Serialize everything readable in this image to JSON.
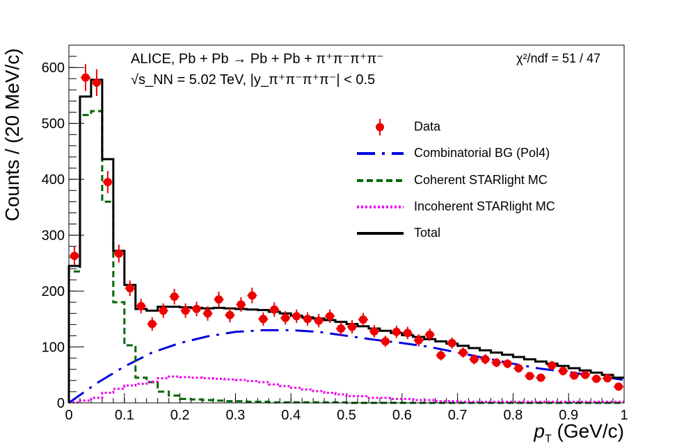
{
  "chart_data": {
    "type": "line",
    "xlabel": "p_T (GeV/c)",
    "xlabel_main": "p",
    "xlabel_sub": "T",
    "xlabel_unit": "(GeV/c)",
    "ylabel": "Counts / (20 MeV/c)",
    "xlim": [
      0,
      1
    ],
    "ylim": [
      0,
      640
    ],
    "x_ticks": [
      "0",
      "0.1",
      "0.2",
      "0.3",
      "0.4",
      "0.5",
      "0.6",
      "0.7",
      "0.8",
      "0.9",
      "1"
    ],
    "y_ticks": [
      "0",
      "100",
      "200",
      "300",
      "400",
      "500",
      "600"
    ],
    "annotations": {
      "line1": "ALICE, Pb + Pb → Pb + Pb + π⁺π⁻π⁺π⁻",
      "line2": "√s_NN = 5.02 TeV, |y_π⁺π⁻π⁺π⁻| < 0.5",
      "chi2": "χ²/ndf = 51 / 47"
    },
    "legend_position": "top-right",
    "series": [
      {
        "name": "Data",
        "kind": "points-with-errors",
        "color": "#ee0000",
        "x": [
          0.01,
          0.03,
          0.05,
          0.07,
          0.09,
          0.11,
          0.13,
          0.15,
          0.17,
          0.19,
          0.21,
          0.23,
          0.25,
          0.27,
          0.29,
          0.31,
          0.33,
          0.35,
          0.37,
          0.39,
          0.41,
          0.43,
          0.45,
          0.47,
          0.49,
          0.51,
          0.53,
          0.55,
          0.57,
          0.59,
          0.61,
          0.63,
          0.65,
          0.67,
          0.69,
          0.71,
          0.73,
          0.75,
          0.77,
          0.79,
          0.81,
          0.83,
          0.85,
          0.87,
          0.89,
          0.91,
          0.93,
          0.95,
          0.97,
          0.99
        ],
        "y": [
          263,
          582,
          573,
          395,
          267,
          205,
          173,
          141,
          165,
          190,
          165,
          168,
          160,
          185,
          157,
          176,
          192,
          150,
          167,
          152,
          155,
          150,
          147,
          155,
          133,
          136,
          149,
          128,
          110,
          127,
          125,
          112,
          122,
          85,
          107,
          90,
          78,
          78,
          72,
          70,
          62,
          48,
          45,
          67,
          57,
          49,
          50,
          43,
          44,
          29
        ],
        "err": [
          17,
          24,
          24,
          20,
          16,
          14,
          13,
          12,
          13,
          14,
          13,
          13,
          13,
          14,
          13,
          13,
          14,
          12,
          13,
          12,
          12,
          12,
          12,
          12,
          12,
          12,
          12,
          11,
          10,
          11,
          11,
          11,
          11,
          9,
          10,
          9,
          9,
          9,
          8,
          8,
          8,
          7,
          7,
          8,
          8,
          7,
          7,
          7,
          7,
          5
        ]
      },
      {
        "name": "Combinatorial BG (Pol4)",
        "kind": "curve",
        "color": "#0000dd",
        "dash": "long-dash-dot",
        "x": [
          0,
          0.05,
          0.1,
          0.15,
          0.2,
          0.25,
          0.3,
          0.35,
          0.4,
          0.45,
          0.5,
          0.55,
          0.6,
          0.65,
          0.7,
          0.75,
          0.8,
          0.85,
          0.9,
          0.95,
          1.0
        ],
        "y": [
          0,
          35,
          65,
          90,
          107,
          119,
          127,
          130,
          130,
          127,
          120,
          113,
          107,
          100,
          90,
          80,
          70,
          61,
          55,
          48,
          41
        ]
      },
      {
        "name": "Coherent STARlight MC",
        "kind": "histogram",
        "color": "#006600",
        "dash": "short-dash",
        "edges": [
          0,
          0.02,
          0.04,
          0.06,
          0.08,
          0.1,
          0.12,
          0.14,
          0.16,
          0.18,
          0.2,
          0.22,
          0.24,
          0.26,
          0.28,
          0.3,
          0.32,
          0.34,
          0.36,
          0.4,
          0.5,
          1.0
        ],
        "values": [
          235,
          515,
          522,
          360,
          180,
          103,
          45,
          37,
          20,
          13,
          7,
          6,
          5,
          4,
          3,
          3,
          2,
          2,
          1,
          1,
          0
        ]
      },
      {
        "name": "Incoherent STARlight MC",
        "kind": "histogram",
        "color": "#ee00ee",
        "dash": "dot",
        "edges": [
          0,
          0.02,
          0.04,
          0.06,
          0.08,
          0.1,
          0.12,
          0.14,
          0.16,
          0.18,
          0.2,
          0.22,
          0.24,
          0.26,
          0.28,
          0.3,
          0.32,
          0.34,
          0.36,
          0.38,
          0.4,
          0.42,
          0.44,
          0.46,
          0.48,
          0.5,
          0.54,
          0.58,
          0.62,
          0.66,
          0.7,
          1.0
        ],
        "values": [
          1,
          4,
          9,
          18,
          25,
          31,
          34,
          38,
          44,
          47,
          46,
          45,
          44,
          43,
          42,
          41,
          39,
          37,
          33,
          30,
          27,
          24,
          21,
          18,
          15,
          12,
          9,
          7,
          5,
          3,
          2
        ]
      },
      {
        "name": "Total",
        "kind": "histogram",
        "color": "#000000",
        "dash": "solid",
        "edges": [
          0,
          0.02,
          0.04,
          0.06,
          0.08,
          0.1,
          0.12,
          0.14,
          0.16,
          0.18,
          0.2,
          0.22,
          0.24,
          0.26,
          0.28,
          0.3,
          0.32,
          0.34,
          0.36,
          0.38,
          0.4,
          0.42,
          0.44,
          0.46,
          0.48,
          0.5,
          0.52,
          0.54,
          0.56,
          0.58,
          0.6,
          0.62,
          0.64,
          0.66,
          0.68,
          0.7,
          0.72,
          0.74,
          0.76,
          0.78,
          0.8,
          0.82,
          0.84,
          0.86,
          0.88,
          0.9,
          0.92,
          0.94,
          0.96,
          0.98,
          1.0
        ],
        "values": [
          245,
          548,
          578,
          436,
          272,
          211,
          168,
          165,
          172,
          172,
          171,
          170,
          169,
          170,
          169,
          168,
          167,
          166,
          163,
          160,
          156,
          153,
          151,
          148,
          145,
          141,
          137,
          133,
          129,
          125,
          121,
          118,
          114,
          110,
          106,
          102,
          98,
          94,
          90,
          86,
          82,
          78,
          74,
          70,
          66,
          62,
          58,
          54,
          50,
          45
        ]
      }
    ]
  }
}
